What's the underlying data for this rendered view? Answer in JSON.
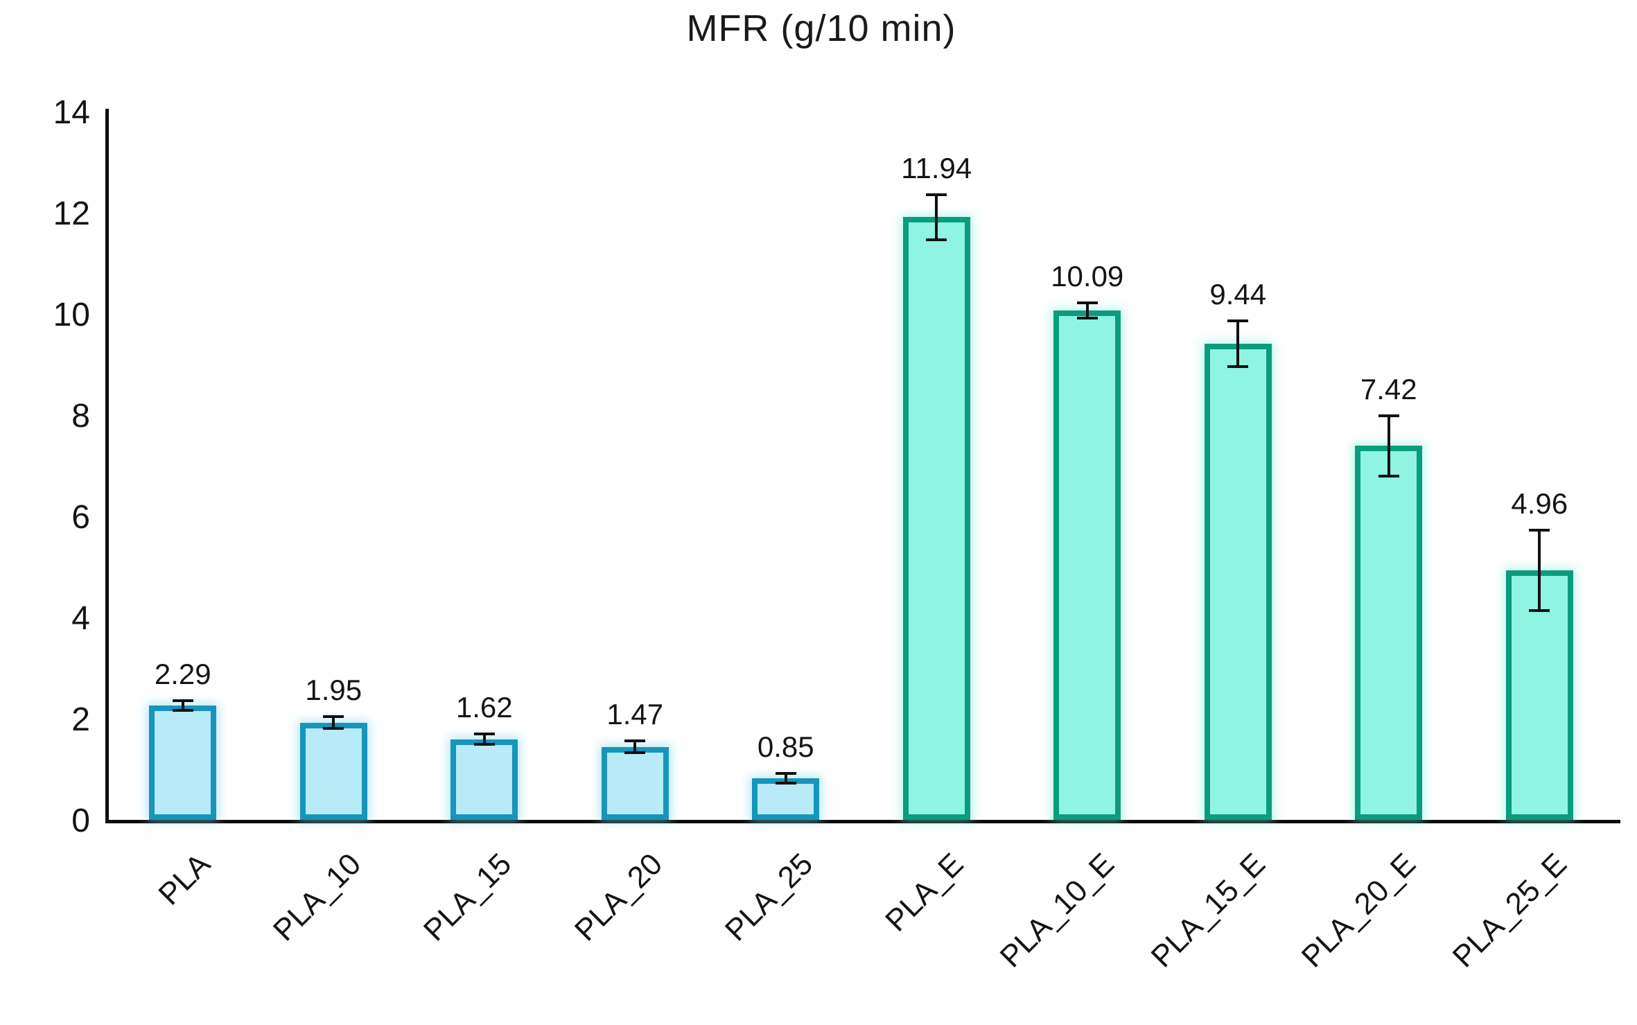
{
  "chart_data": {
    "type": "bar",
    "title": "MFR (g/10 min)",
    "categories": [
      "PLA",
      "PLA_10",
      "PLA_15",
      "PLA_20",
      "PLA_25",
      "PLA_E",
      "PLA_10_E",
      "PLA_15_E",
      "PLA_20_E",
      "PLA_25_E"
    ],
    "values": [
      2.29,
      1.95,
      1.62,
      1.47,
      0.85,
      11.94,
      10.09,
      9.44,
      7.42,
      4.96
    ],
    "data_labels": [
      "2.29",
      "1.95",
      "1.62",
      "1.47",
      "0.85",
      "11.94",
      "10.09",
      "9.44",
      "7.42",
      "4.96"
    ],
    "error_bars": [
      0.1,
      0.12,
      0.1,
      0.12,
      0.1,
      0.45,
      0.15,
      0.45,
      0.6,
      0.8
    ],
    "bar_groups": [
      "blue",
      "blue",
      "blue",
      "blue",
      "blue",
      "teal",
      "teal",
      "teal",
      "teal",
      "teal"
    ],
    "xlabel": "",
    "ylabel": "",
    "ylim": [
      0,
      14
    ],
    "yticks": [
      "0",
      "2",
      "4",
      "6",
      "8",
      "10",
      "12",
      "14"
    ],
    "grid": false,
    "legend_position": "none",
    "colors": {
      "blue_fill": "#b8eaf7",
      "blue_border": "#1795ba",
      "teal_fill": "#8ff5e2",
      "teal_border": "#0b9c7d",
      "axis": "#0d0d0d",
      "text": "#141414"
    }
  }
}
